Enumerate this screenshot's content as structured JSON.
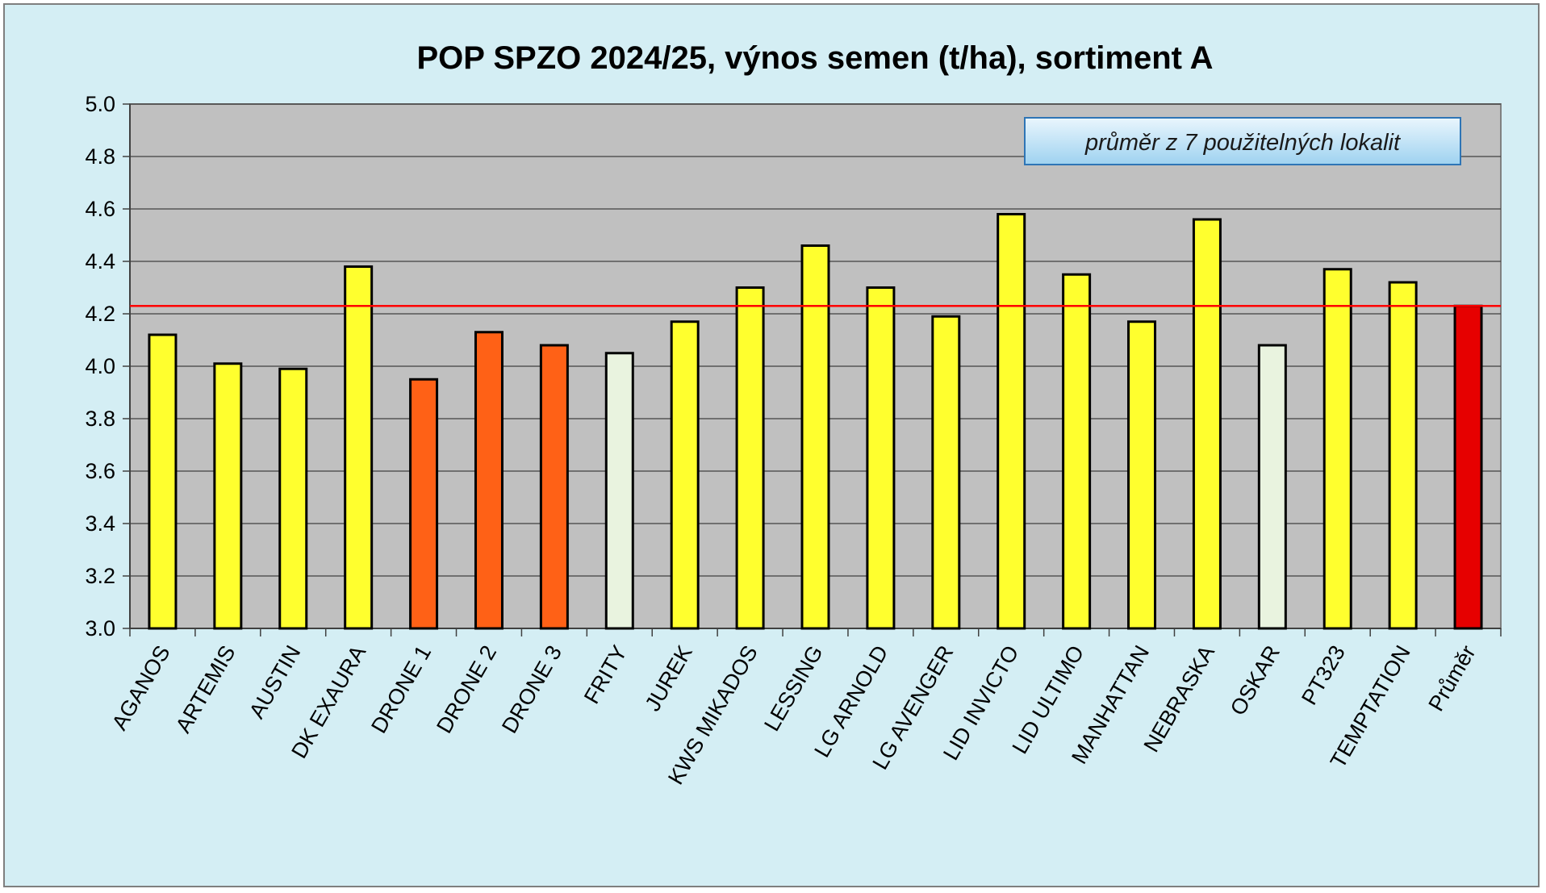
{
  "chart_data": {
    "type": "bar",
    "title": "POP SPZO 2024/25, výnos semen (t/ha), sortiment A",
    "xlabel": "",
    "ylabel": "",
    "ylim": [
      3.0,
      5.0
    ],
    "ytick_labels": [
      "3.0",
      "3.2",
      "3.4",
      "3.6",
      "3.8",
      "4.0",
      "4.2",
      "4.4",
      "4.6",
      "4.8",
      "5.0"
    ],
    "grid": true,
    "annotation": "průměr z 7 použitelných lokalit",
    "reference_line": {
      "value": 4.23,
      "color": "#ff0000"
    },
    "categories": [
      "AGANOS",
      "ARTEMIS",
      "AUSTIN",
      "DK EXAURA",
      "DRONE 1",
      "DRONE 2",
      "DRONE 3",
      "FRITY",
      "JUREK",
      "KWS MIKADOS",
      "LESSING",
      "LG ARNOLD",
      "LG AVENGER",
      "LID INVICTO",
      "LID ULTIMO",
      "MANHATTAN",
      "NEBRASKA",
      "OSKAR",
      "PT323",
      "TEMPTATION",
      "Průměr"
    ],
    "values": [
      4.12,
      4.01,
      3.99,
      4.38,
      3.95,
      4.13,
      4.08,
      4.05,
      4.17,
      4.3,
      4.46,
      4.3,
      4.19,
      4.58,
      4.35,
      4.17,
      4.56,
      4.08,
      4.37,
      4.32,
      4.23
    ],
    "bar_colors": [
      "#ffff2e",
      "#ffff2e",
      "#ffff2e",
      "#ffff2e",
      "#ff6116",
      "#ff6116",
      "#ff6116",
      "#e9f3df",
      "#ffff2e",
      "#ffff2e",
      "#ffff2e",
      "#ffff2e",
      "#ffff2e",
      "#ffff2e",
      "#ffff2e",
      "#ffff2e",
      "#ffff2e",
      "#e9f3df",
      "#ffff2e",
      "#ffff2e",
      "#e60000"
    ],
    "colors": {
      "background": "#d4eef4",
      "plot_area": "#c0c0c0",
      "gridline": "#404040",
      "bar_outline": "#000000"
    }
  }
}
